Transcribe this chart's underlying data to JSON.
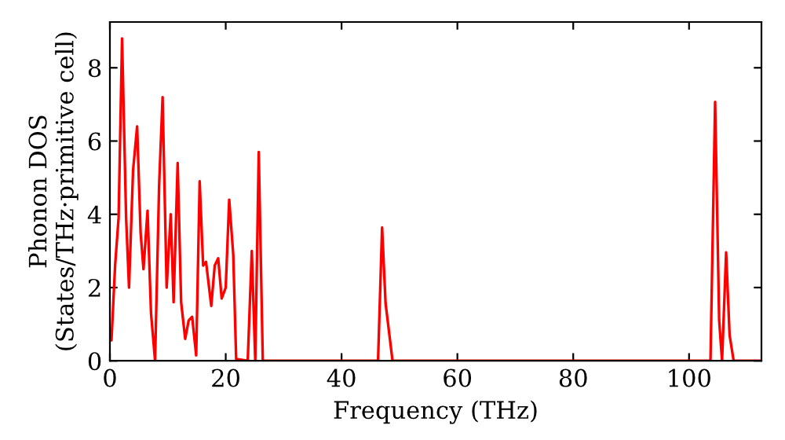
{
  "chart_data": {
    "type": "line",
    "xlabel": "Frequency (THz)",
    "ylabel": "Phonon DOS\n(States/THz·primitive cell)",
    "x": [
      0,
      0.27,
      0.9,
      1.5,
      2.1,
      2.8,
      3.3,
      4.0,
      4.7,
      5.3,
      5.8,
      6.5,
      7.1,
      7.8,
      8.5,
      9.1,
      9.8,
      10.5,
      11.0,
      11.7,
      12.3,
      13.0,
      13.6,
      14.2,
      14.9,
      15.5,
      16.1,
      16.6,
      17.5,
      18.1,
      18.7,
      19.3,
      20.0,
      20.6,
      21.3,
      21.8,
      23.8,
      24.5,
      25.1,
      25.7,
      26.4,
      46.3,
      47.0,
      47.6,
      48.8,
      103.7,
      104.5,
      105.2,
      105.7,
      106.4,
      107.0,
      107.7,
      112.5
    ],
    "series": [
      {
        "color": "#ff0000",
        "values": [
          0.63,
          0.56,
          2.6,
          3.9,
          8.8,
          3.9,
          2.0,
          5.2,
          6.4,
          3.5,
          2.5,
          4.1,
          1.3,
          0,
          4.8,
          7.2,
          2.0,
          4.0,
          1.6,
          5.4,
          1.6,
          0.6,
          1.1,
          1.2,
          0.15,
          4.9,
          2.6,
          2.7,
          1.5,
          2.6,
          2.8,
          1.7,
          2.0,
          4.4,
          2.9,
          0.05,
          0,
          3.0,
          0,
          5.7,
          0,
          0,
          3.64,
          1.57,
          0,
          0,
          7.07,
          1.1,
          0,
          2.96,
          0.7,
          0,
          0
        ]
      }
    ],
    "xlim": [
      0,
      112.5
    ],
    "ylim": [
      0,
      9.25
    ],
    "xticks": [
      0,
      20,
      40,
      60,
      80,
      100
    ],
    "yticks": [
      0,
      2,
      4,
      6,
      8
    ],
    "grid": false,
    "legend": false,
    "marker": "none",
    "line_style": "solid"
  }
}
